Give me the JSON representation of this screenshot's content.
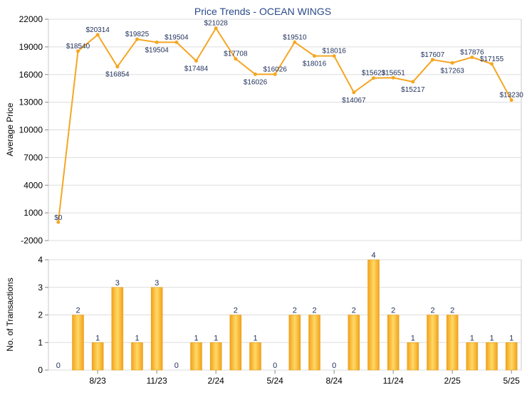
{
  "chart_data": [
    {
      "type": "line",
      "title": "Price Trends - OCEAN WINGS",
      "ylabel": "Average Price",
      "ylim": [
        -2000,
        22000
      ],
      "yticks": [
        -2000,
        1000,
        4000,
        7000,
        10000,
        13000,
        16000,
        19000,
        22000
      ],
      "grid": true,
      "line_color": "#f5a623",
      "points": [
        {
          "x": 1,
          "y": 0,
          "label": "$0"
        },
        {
          "x": 2,
          "y": 18540,
          "label": "$18540"
        },
        {
          "x": 3,
          "y": 20314,
          "label": "$20314"
        },
        {
          "x": 4,
          "y": 16854,
          "label": "$16854"
        },
        {
          "x": 5,
          "y": 19825,
          "label": "$19825"
        },
        {
          "x": 6,
          "y": 19504,
          "label": "$19504"
        },
        {
          "x": 7,
          "y": 19504,
          "label": "$19504"
        },
        {
          "x": 8,
          "y": 17484,
          "label": "$17484"
        },
        {
          "x": 9,
          "y": 21028,
          "label": "$21028"
        },
        {
          "x": 10,
          "y": 17708,
          "label": "$17708"
        },
        {
          "x": 11,
          "y": 16026,
          "label": "$16026"
        },
        {
          "x": 12,
          "y": 16026,
          "label": "$16026"
        },
        {
          "x": 13,
          "y": 19510,
          "label": "$19510"
        },
        {
          "x": 14,
          "y": 18016,
          "label": "$18016"
        },
        {
          "x": 15,
          "y": 18016,
          "label": "$18016"
        },
        {
          "x": 16,
          "y": 14067,
          "label": "$14067"
        },
        {
          "x": 17,
          "y": 15623,
          "label": "$15623"
        },
        {
          "x": 18,
          "y": 15651,
          "label": "$15651"
        },
        {
          "x": 19,
          "y": 15217,
          "label": "$15217"
        },
        {
          "x": 20,
          "y": 17607,
          "label": "$17607"
        },
        {
          "x": 21,
          "y": 17263,
          "label": "$17263"
        },
        {
          "x": 22,
          "y": 17876,
          "label": "$17876"
        },
        {
          "x": 23,
          "y": 17155,
          "label": "$17155"
        },
        {
          "x": 24,
          "y": 13230,
          "label": "$13230"
        }
      ]
    },
    {
      "type": "bar",
      "ylabel": "No. of Transactions",
      "ylim": [
        0,
        4
      ],
      "yticks": [
        0,
        1,
        2,
        3,
        4
      ],
      "grid": true,
      "bar_color": "#f5a623",
      "values": [
        0,
        2,
        1,
        3,
        1,
        3,
        0,
        1,
        1,
        2,
        1,
        0,
        2,
        2,
        0,
        2,
        4,
        2,
        1,
        2,
        2,
        1,
        1,
        1
      ],
      "xtick_labels": [
        "8/23",
        "11/23",
        "2/24",
        "5/24",
        "8/24",
        "11/24",
        "2/25",
        "5/25"
      ],
      "xtick_positions": [
        3,
        6,
        9,
        12,
        15,
        18,
        21,
        24
      ]
    }
  ]
}
